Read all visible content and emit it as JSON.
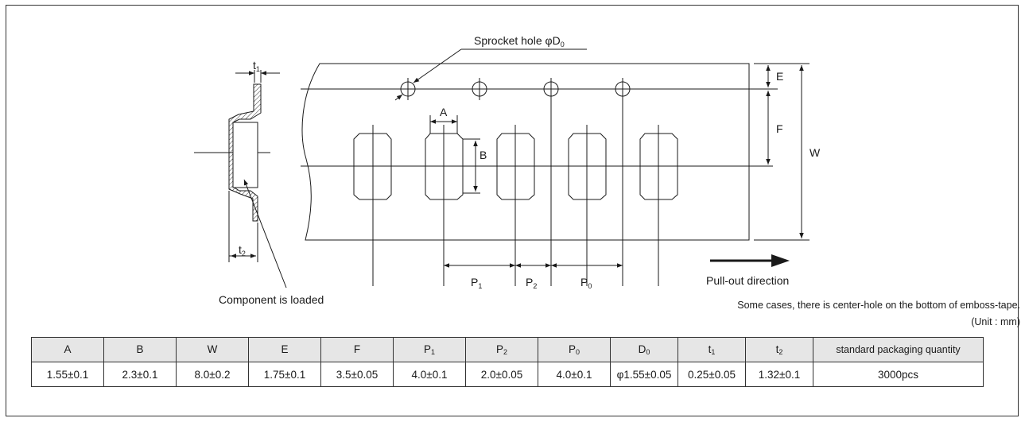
{
  "diagram": {
    "sprocket_label": "Sprocket hole φD",
    "sprocket_sub": "0",
    "component_label": "Component is loaded",
    "pullout_label": "Pull-out direction",
    "dim_A": "A",
    "dim_B": "B",
    "dim_E": "E",
    "dim_F": "F",
    "dim_W": "W",
    "dim_P": "P",
    "sub_1": "1",
    "sub_2": "2",
    "sub_0": "0",
    "dim_t": "t"
  },
  "notes": {
    "center_hole": "Some cases, there is center-hole on the bottom of emboss-tape.",
    "unit": "(Unit : mm)"
  },
  "table": {
    "headers": [
      {
        "main": "A",
        "sub": ""
      },
      {
        "main": "B",
        "sub": ""
      },
      {
        "main": "W",
        "sub": ""
      },
      {
        "main": "E",
        "sub": ""
      },
      {
        "main": "F",
        "sub": ""
      },
      {
        "main": "P",
        "sub": "1"
      },
      {
        "main": "P",
        "sub": "2"
      },
      {
        "main": "P",
        "sub": "0"
      },
      {
        "main": "D",
        "sub": "0"
      },
      {
        "main": "t",
        "sub": "1"
      },
      {
        "main": "t",
        "sub": "2"
      },
      {
        "main": "standard packaging quantity",
        "sub": ""
      }
    ],
    "values": [
      "1.55±0.1",
      "2.3±0.1",
      "8.0±0.2",
      "1.75±0.1",
      "3.5±0.05",
      "4.0±0.1",
      "2.0±0.05",
      "4.0±0.1",
      "φ1.55±0.05",
      "0.25±0.05",
      "1.32±0.1",
      "3000pcs"
    ]
  }
}
